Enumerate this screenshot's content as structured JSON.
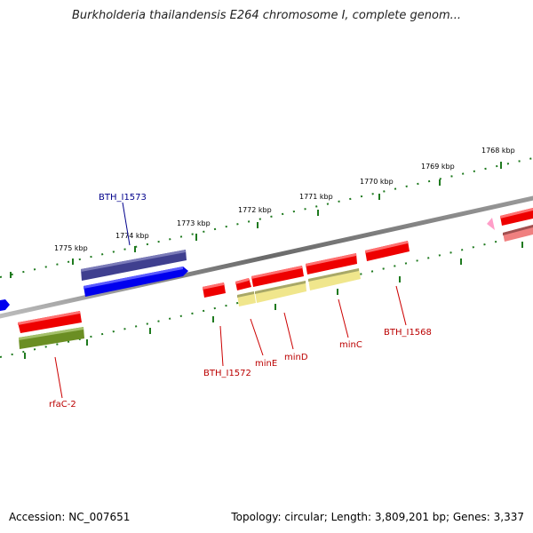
{
  "title": "Burkholderia thailandensis E264 chromosome I, complete genom...",
  "footer": {
    "accession": "Accession: NC_007651",
    "topology": "Topology: circular; Length: 3,809,201 bp; Genes: 3,337"
  },
  "colors": {
    "backbone": "#7a7a7a",
    "tick": "#1f7a1f",
    "gene_red": "#ee0000",
    "gene_blue": "#0000ee",
    "gene_navy": "#3f3f8f",
    "gene_olive": "#6b8e23",
    "gene_khaki": "#f0e68c",
    "label_red": "#bb0000",
    "label_blue": "#00008b"
  },
  "ticks": [
    "1775 kbp",
    "1774 kbp",
    "1773 kbp",
    "1772 kbp",
    "1771 kbp",
    "1770 kbp",
    "1769 kbp",
    "1768 kbp"
  ],
  "genes": [
    "rfaC-2",
    "BTH_I1572",
    "minE",
    "minD",
    "minC",
    "BTH_I1568",
    "BTH_I1573"
  ]
}
